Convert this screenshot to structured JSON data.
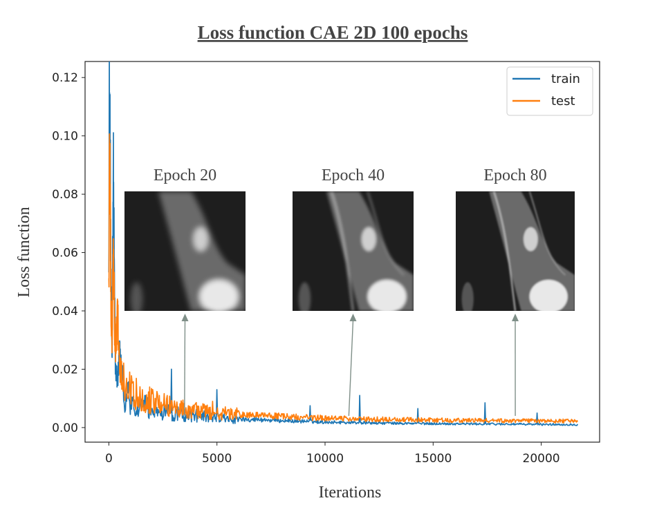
{
  "chart_data": {
    "type": "line",
    "title": "Loss function CAE 2D 100 epochs",
    "xlabel": "Iterations",
    "ylabel": "Loss function",
    "xlim": [
      -1100,
      22700
    ],
    "ylim": [
      -0.005,
      0.1255
    ],
    "xticks": [
      0,
      5000,
      10000,
      15000,
      20000
    ],
    "xtick_labels": [
      "0",
      "5000",
      "10000",
      "15000",
      "20000"
    ],
    "yticks": [
      0.0,
      0.02,
      0.04,
      0.06,
      0.08,
      0.1,
      0.12
    ],
    "ytick_labels": [
      "0.00",
      "0.02",
      "0.04",
      "0.06",
      "0.08",
      "0.10",
      "0.12"
    ],
    "legend": {
      "placement": "top-right",
      "entries": [
        "train",
        "test"
      ]
    },
    "series": [
      {
        "name": "train",
        "color": "#1f77b4",
        "x": [
          0,
          30,
          60,
          100,
          150,
          200,
          300,
          400,
          500,
          700,
          1000,
          1500,
          2000,
          3000,
          4000,
          5000,
          6000,
          8000,
          10000,
          12000,
          14000,
          16000,
          18000,
          20000,
          21700
        ],
        "y": [
          0.07,
          0.12,
          0.095,
          0.045,
          0.025,
          0.089,
          0.02,
          0.016,
          0.025,
          0.012,
          0.01,
          0.008,
          0.0065,
          0.005,
          0.0042,
          0.0035,
          0.003,
          0.0024,
          0.0019,
          0.0016,
          0.0014,
          0.0013,
          0.0012,
          0.0011,
          0.001
        ],
        "spikes": [
          {
            "x": 2900,
            "y": 0.02
          },
          {
            "x": 5000,
            "y": 0.013
          },
          {
            "x": 6300,
            "y": 0.0125
          },
          {
            "x": 9300,
            "y": 0.0075
          },
          {
            "x": 11600,
            "y": 0.011
          },
          {
            "x": 14300,
            "y": 0.0065
          },
          {
            "x": 17400,
            "y": 0.0085
          },
          {
            "x": 19800,
            "y": 0.005
          }
        ]
      },
      {
        "name": "test",
        "color": "#ff7f0e",
        "x": [
          0,
          30,
          60,
          100,
          150,
          200,
          300,
          400,
          500,
          700,
          1000,
          1500,
          2000,
          3000,
          4000,
          5000,
          6000,
          8000,
          10000,
          12000,
          14000,
          16000,
          18000,
          20000,
          21700
        ],
        "y": [
          0.05,
          0.091,
          0.085,
          0.04,
          0.03,
          0.06,
          0.024,
          0.04,
          0.02,
          0.016,
          0.013,
          0.011,
          0.009,
          0.007,
          0.0058,
          0.005,
          0.0045,
          0.0038,
          0.0032,
          0.0029,
          0.0027,
          0.0025,
          0.0024,
          0.0023,
          0.0022
        ],
        "spikes": [
          {
            "x": 2700,
            "y": 0.011
          },
          {
            "x": 3500,
            "y": 0.012
          },
          {
            "x": 4800,
            "y": 0.009
          },
          {
            "x": 6300,
            "y": 0.008
          }
        ]
      }
    ],
    "insets": [
      {
        "label": "Epoch 20",
        "x": 3500
      },
      {
        "label": "Epoch 40",
        "x": 11100
      },
      {
        "label": "Epoch 80",
        "x": 18800
      }
    ]
  }
}
